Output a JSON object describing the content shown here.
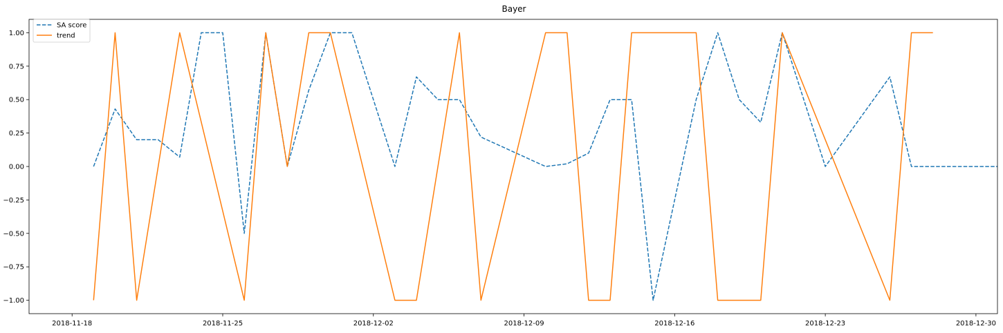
{
  "chart_data": {
    "type": "line",
    "title": "Bayer",
    "xlabel": "",
    "ylabel": "",
    "xlim": [
      "2018-11-16",
      "2018-12-31"
    ],
    "ylim": [
      -1.1,
      1.1
    ],
    "x_ticks": [
      "2018-11-18",
      "2018-11-25",
      "2018-12-02",
      "2018-12-09",
      "2018-12-16",
      "2018-12-23",
      "2018-12-30"
    ],
    "y_ticks": [
      "1.00",
      "0.75",
      "0.50",
      "0.25",
      "0.00",
      "−0.25",
      "−0.50",
      "−0.75",
      "−1.00"
    ],
    "legend": {
      "position": "top-left",
      "entries": [
        "SA score",
        "trend"
      ]
    },
    "series": [
      {
        "name": "SA score",
        "color": "#1f77b4",
        "style": "dashed",
        "points": [
          [
            "2018-11-19",
            0.0
          ],
          [
            "2018-11-20",
            0.43
          ],
          [
            "2018-11-21",
            0.2
          ],
          [
            "2018-11-22",
            0.2
          ],
          [
            "2018-11-23",
            0.07
          ],
          [
            "2018-11-24",
            1.0
          ],
          [
            "2018-11-25",
            1.0
          ],
          [
            "2018-11-26",
            -0.5
          ],
          [
            "2018-11-27",
            1.0
          ],
          [
            "2018-11-28",
            0.0
          ],
          [
            "2018-11-29",
            0.57
          ],
          [
            "2018-11-30",
            1.0
          ],
          [
            "2018-12-01",
            1.0
          ],
          [
            "2018-12-03",
            0.0
          ],
          [
            "2018-12-04",
            0.67
          ],
          [
            "2018-12-05",
            0.5
          ],
          [
            "2018-12-06",
            0.5
          ],
          [
            "2018-12-07",
            0.22
          ],
          [
            "2018-12-10",
            0.0
          ],
          [
            "2018-12-11",
            0.02
          ],
          [
            "2018-12-12",
            0.1
          ],
          [
            "2018-12-13",
            0.5
          ],
          [
            "2018-12-14",
            0.5
          ],
          [
            "2018-12-15",
            -1.0
          ],
          [
            "2018-12-17",
            0.5
          ],
          [
            "2018-12-18",
            1.0
          ],
          [
            "2018-12-19",
            0.5
          ],
          [
            "2018-12-20",
            0.33
          ],
          [
            "2018-12-21",
            1.0
          ],
          [
            "2018-12-23",
            0.0
          ],
          [
            "2018-12-26",
            0.67
          ],
          [
            "2018-12-27",
            0.0
          ],
          [
            "2018-12-31",
            0.0
          ]
        ]
      },
      {
        "name": "trend",
        "color": "#ff7f0e",
        "style": "solid",
        "points": [
          [
            "2018-11-19",
            -1
          ],
          [
            "2018-11-20",
            1
          ],
          [
            "2018-11-21",
            -1
          ],
          [
            "2018-11-23",
            1
          ],
          [
            "2018-11-26",
            -1
          ],
          [
            "2018-11-27",
            1
          ],
          [
            "2018-11-28",
            0
          ],
          [
            "2018-11-29",
            1
          ],
          [
            "2018-11-30",
            1
          ],
          [
            "2018-12-03",
            -1
          ],
          [
            "2018-12-04",
            -1
          ],
          [
            "2018-12-06",
            1
          ],
          [
            "2018-12-07",
            -1
          ],
          [
            "2018-12-10",
            1
          ],
          [
            "2018-12-11",
            1
          ],
          [
            "2018-12-12",
            -1
          ],
          [
            "2018-12-13",
            -1
          ],
          [
            "2018-12-14",
            1
          ],
          [
            "2018-12-17",
            1
          ],
          [
            "2018-12-18",
            -1
          ],
          [
            "2018-12-20",
            -1
          ],
          [
            "2018-12-21",
            1
          ],
          [
            "2018-12-26",
            -1
          ],
          [
            "2018-12-27",
            1
          ],
          [
            "2018-12-28",
            1
          ]
        ]
      }
    ]
  }
}
